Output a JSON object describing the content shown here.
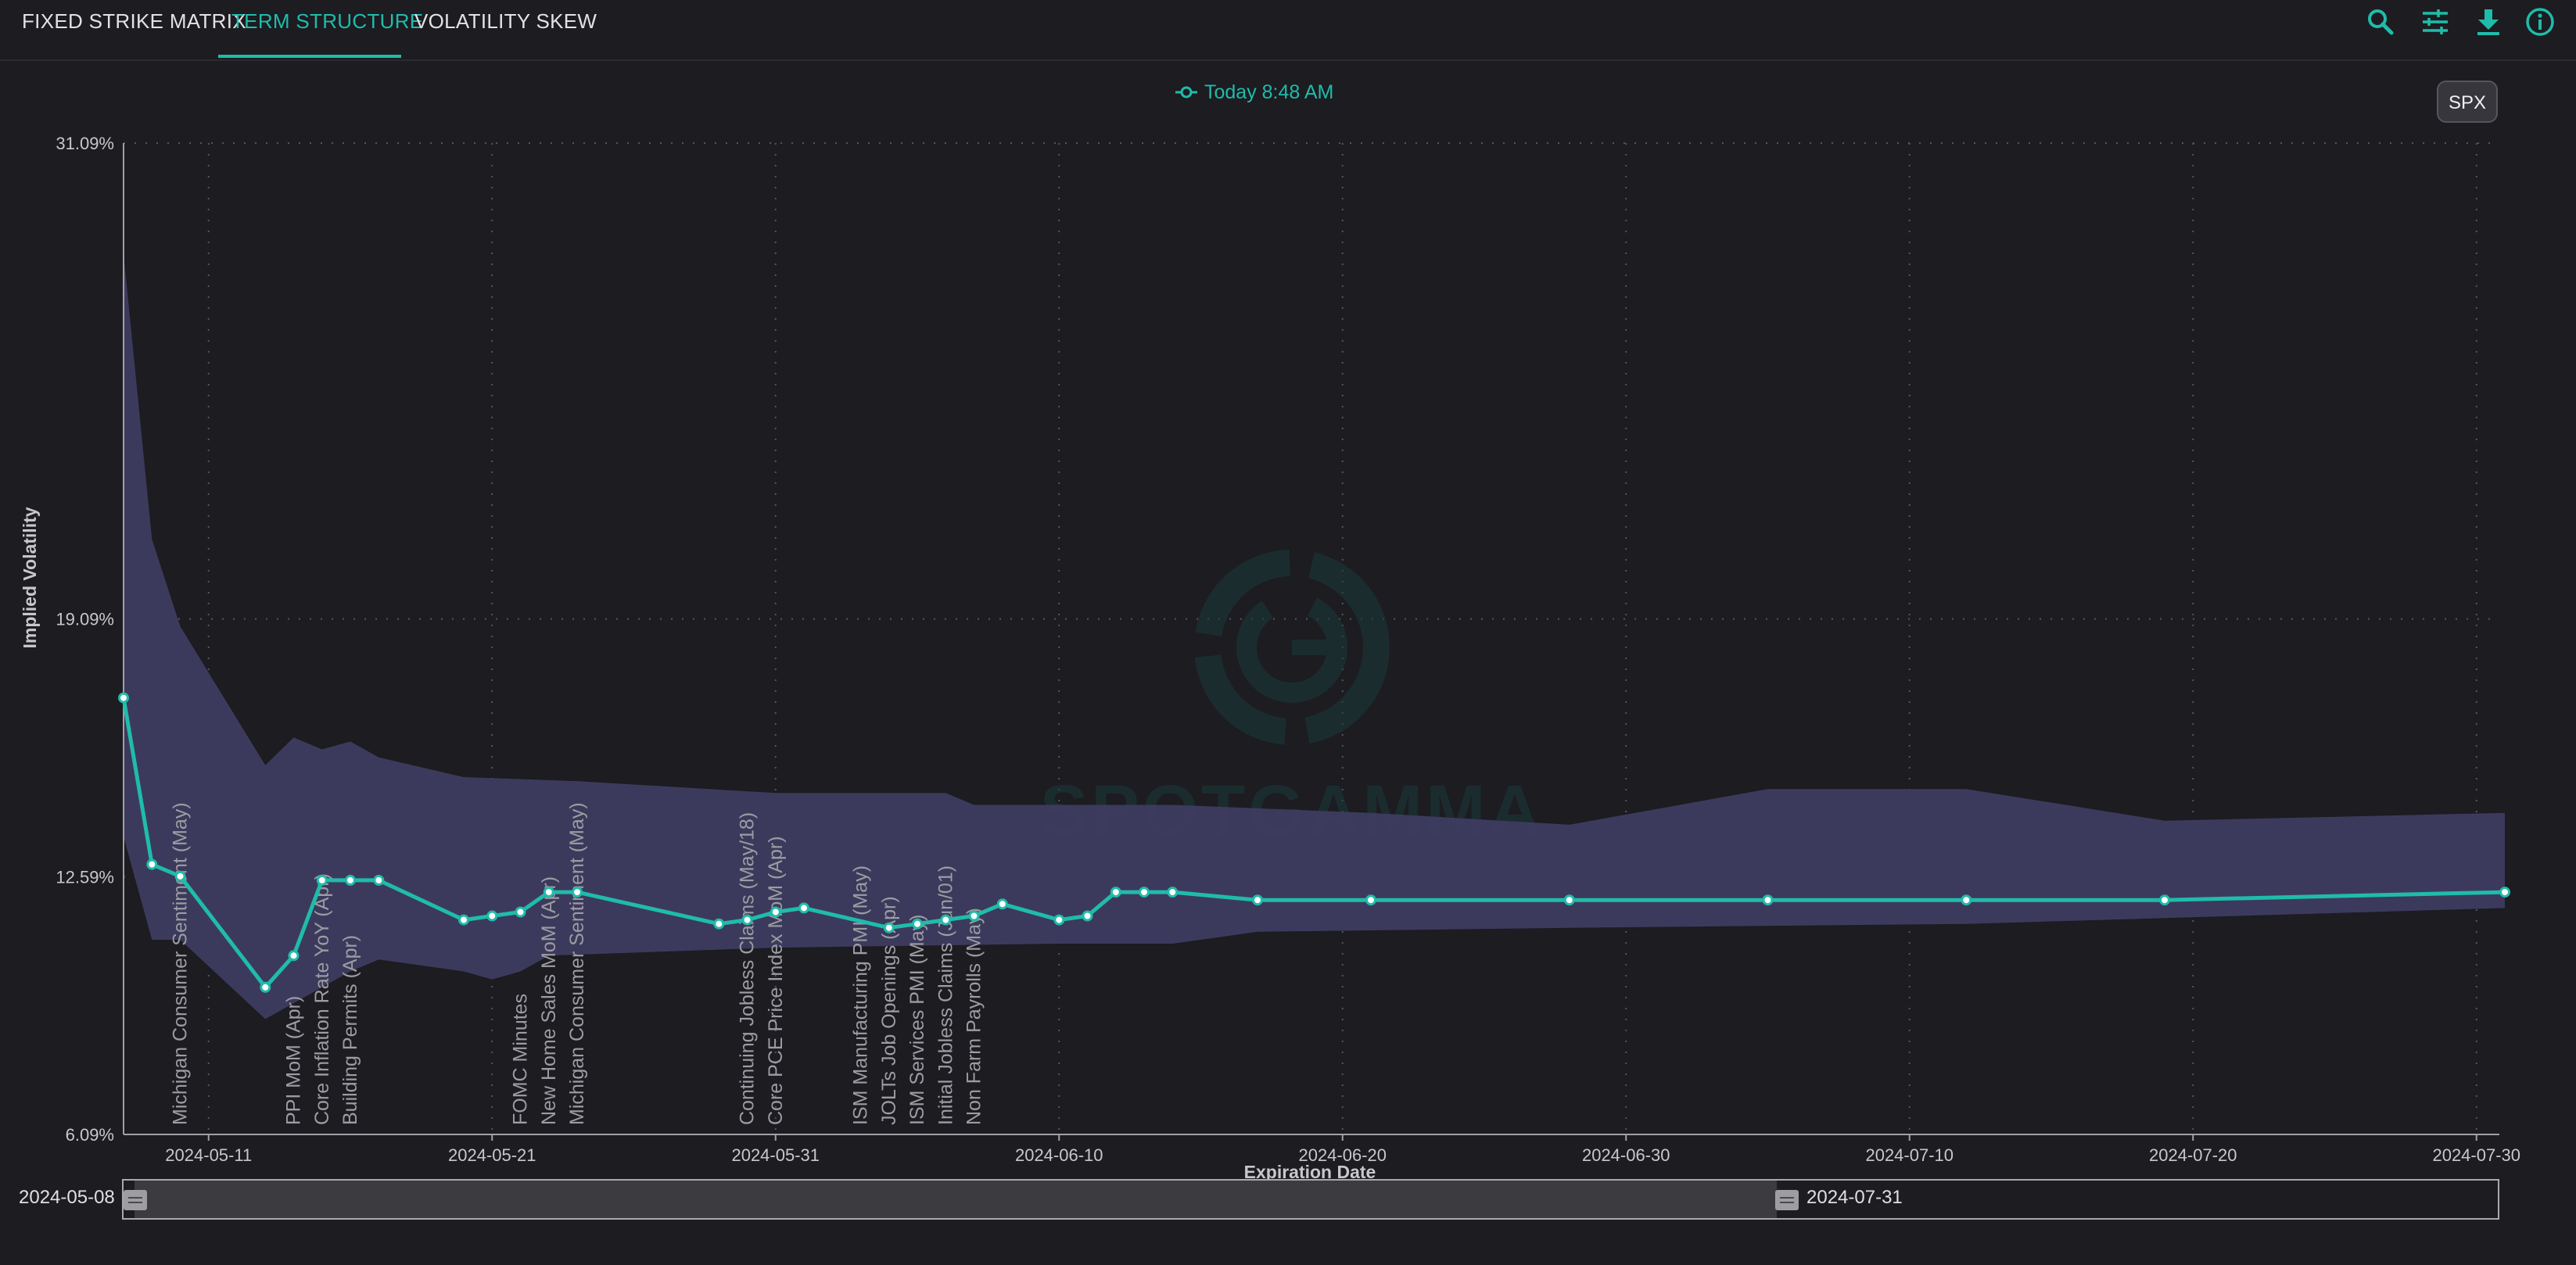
{
  "tabs": [
    {
      "label": "FIXED STRIKE MATRIX",
      "active": false
    },
    {
      "label": "TERM STRUCTURE",
      "active": true
    },
    {
      "label": "VOLATILITY SKEW",
      "active": false
    }
  ],
  "toolbar_icons": [
    "search-icon",
    "sliders-icon",
    "download-icon",
    "info-icon"
  ],
  "colors": {
    "accent": "#1fbcaa",
    "band": "#3e3c60",
    "background": "#1c1c21"
  },
  "symbol_button": "SPX",
  "range_slider": {
    "start": "2024-05-08",
    "end": "2024-07-31"
  },
  "chart_data": {
    "type": "line",
    "xlabel": "Expiration Date",
    "ylabel": "Implied Volatility",
    "ylim": [
      6.09,
      31.09
    ],
    "y_ticks": [
      "31.09%",
      "19.09%",
      "12.59%",
      "6.09%"
    ],
    "x_ticks": [
      "2024-05-11",
      "2024-05-21",
      "2024-05-31",
      "2024-06-10",
      "2024-06-20",
      "2024-06-30",
      "2024-07-10",
      "2024-07-20",
      "2024-07-30"
    ],
    "legend": "Today 8:48 AM",
    "watermark": "SPOTGAMMA",
    "grid": true,
    "series": [
      {
        "name": "Today 8:48 AM",
        "points": [
          {
            "x": "2024-05-08",
            "y": 17.1
          },
          {
            "x": "2024-05-09",
            "y": 12.9
          },
          {
            "x": "2024-05-10",
            "y": 12.6
          },
          {
            "x": "2024-05-13",
            "y": 9.8
          },
          {
            "x": "2024-05-14",
            "y": 10.6
          },
          {
            "x": "2024-05-15",
            "y": 12.5
          },
          {
            "x": "2024-05-16",
            "y": 12.5
          },
          {
            "x": "2024-05-17",
            "y": 12.5
          },
          {
            "x": "2024-05-20",
            "y": 11.5
          },
          {
            "x": "2024-05-21",
            "y": 11.6
          },
          {
            "x": "2024-05-22",
            "y": 11.7
          },
          {
            "x": "2024-05-23",
            "y": 12.2
          },
          {
            "x": "2024-05-24",
            "y": 12.2
          },
          {
            "x": "2024-05-29",
            "y": 11.4
          },
          {
            "x": "2024-05-30",
            "y": 11.5
          },
          {
            "x": "2024-05-31",
            "y": 11.7
          },
          {
            "x": "2024-06-01",
            "y": 11.8
          },
          {
            "x": "2024-06-04",
            "y": 11.3
          },
          {
            "x": "2024-06-05",
            "y": 11.4
          },
          {
            "x": "2024-06-06",
            "y": 11.5
          },
          {
            "x": "2024-06-07",
            "y": 11.6
          },
          {
            "x": "2024-06-08",
            "y": 11.9
          },
          {
            "x": "2024-06-10",
            "y": 11.5
          },
          {
            "x": "2024-06-11",
            "y": 11.6
          },
          {
            "x": "2024-06-12",
            "y": 12.2
          },
          {
            "x": "2024-06-13",
            "y": 12.2
          },
          {
            "x": "2024-06-14",
            "y": 12.2
          },
          {
            "x": "2024-06-17",
            "y": 12.0
          },
          {
            "x": "2024-06-21",
            "y": 12.0
          },
          {
            "x": "2024-06-28",
            "y": 12.0
          },
          {
            "x": "2024-07-05",
            "y": 12.0
          },
          {
            "x": "2024-07-12",
            "y": 12.0
          },
          {
            "x": "2024-07-19",
            "y": 12.0
          },
          {
            "x": "2024-07-31",
            "y": 12.2
          }
        ]
      },
      {
        "name": "range-band",
        "upper": [
          {
            "x": "2024-05-08",
            "y": 28.3
          },
          {
            "x": "2024-05-09",
            "y": 21.1
          },
          {
            "x": "2024-05-10",
            "y": 18.9
          },
          {
            "x": "2024-05-13",
            "y": 15.4
          },
          {
            "x": "2024-05-14",
            "y": 16.1
          },
          {
            "x": "2024-05-15",
            "y": 15.8
          },
          {
            "x": "2024-05-16",
            "y": 16.0
          },
          {
            "x": "2024-05-17",
            "y": 15.6
          },
          {
            "x": "2024-05-20",
            "y": 15.1
          },
          {
            "x": "2024-05-24",
            "y": 15.0
          },
          {
            "x": "2024-05-31",
            "y": 14.7
          },
          {
            "x": "2024-06-06",
            "y": 14.7
          },
          {
            "x": "2024-06-07",
            "y": 14.4
          },
          {
            "x": "2024-06-14",
            "y": 14.4
          },
          {
            "x": "2024-06-21",
            "y": 14.2
          },
          {
            "x": "2024-06-28",
            "y": 13.9
          },
          {
            "x": "2024-07-05",
            "y": 14.8
          },
          {
            "x": "2024-07-12",
            "y": 14.8
          },
          {
            "x": "2024-07-19",
            "y": 14.0
          },
          {
            "x": "2024-07-31",
            "y": 14.2
          }
        ],
        "lower": [
          {
            "x": "2024-05-08",
            "y": 13.6
          },
          {
            "x": "2024-05-09",
            "y": 11.0
          },
          {
            "x": "2024-05-10",
            "y": 11.0
          },
          {
            "x": "2024-05-13",
            "y": 9.0
          },
          {
            "x": "2024-05-14",
            "y": 9.4
          },
          {
            "x": "2024-05-15",
            "y": 9.8
          },
          {
            "x": "2024-05-16",
            "y": 10.2
          },
          {
            "x": "2024-05-17",
            "y": 10.5
          },
          {
            "x": "2024-05-20",
            "y": 10.2
          },
          {
            "x": "2024-05-21",
            "y": 10.0
          },
          {
            "x": "2024-05-22",
            "y": 10.2
          },
          {
            "x": "2024-05-23",
            "y": 10.6
          },
          {
            "x": "2024-05-31",
            "y": 10.8
          },
          {
            "x": "2024-06-10",
            "y": 10.9
          },
          {
            "x": "2024-06-14",
            "y": 10.9
          },
          {
            "x": "2024-06-17",
            "y": 11.2
          },
          {
            "x": "2024-06-28",
            "y": 11.3
          },
          {
            "x": "2024-07-12",
            "y": 11.4
          },
          {
            "x": "2024-07-31",
            "y": 11.8
          }
        ]
      }
    ],
    "events": [
      {
        "x": "2024-05-10",
        "label": "Michigan Consumer Sentiment (May)"
      },
      {
        "x": "2024-05-14",
        "label": "PPI MoM (Apr)"
      },
      {
        "x": "2024-05-15",
        "label": "Core Inflation Rate YoY (Apr)"
      },
      {
        "x": "2024-05-16",
        "label": "Building Permits (Apr)"
      },
      {
        "x": "2024-05-22",
        "label": "FOMC Minutes"
      },
      {
        "x": "2024-05-23",
        "label": "New Home Sales MoM (Apr)"
      },
      {
        "x": "2024-05-24",
        "label": "Michigan Consumer Sentiment (May)"
      },
      {
        "x": "2024-05-30",
        "label": "Continuing Jobless Claims (May/18)"
      },
      {
        "x": "2024-05-31",
        "label": "Core PCE Price Index MoM (Apr)"
      },
      {
        "x": "2024-06-03",
        "label": "ISM Manufacturing PMI (May)"
      },
      {
        "x": "2024-06-04",
        "label": "JOLTs Job Openings (Apr)"
      },
      {
        "x": "2024-06-05",
        "label": "ISM Services PMI (May)"
      },
      {
        "x": "2024-06-06",
        "label": "Initial Jobless Claims (Jun/01)"
      },
      {
        "x": "2024-06-07",
        "label": "Non Farm Payrolls (May)"
      }
    ]
  }
}
